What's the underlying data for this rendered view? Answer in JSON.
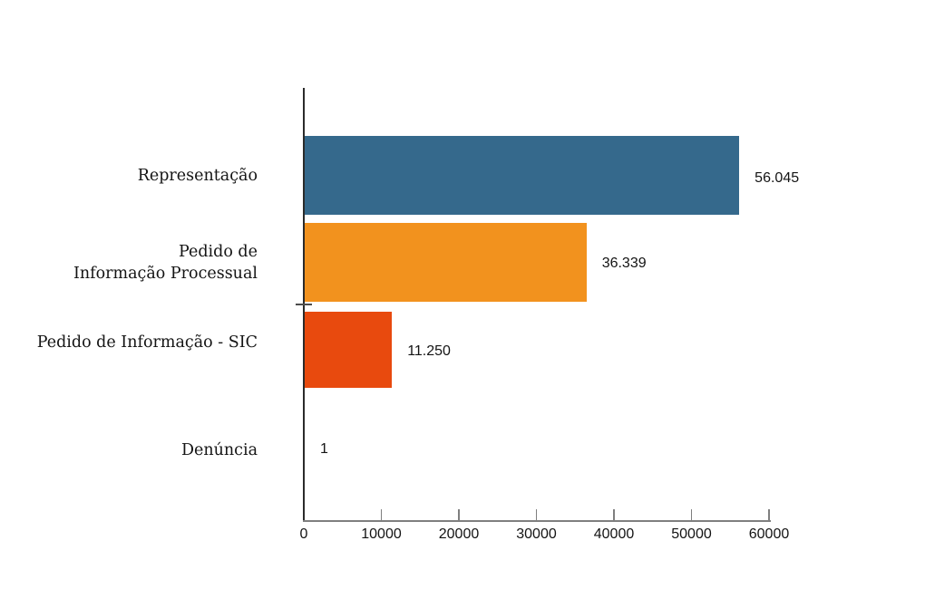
{
  "chart_data": {
    "type": "bar",
    "orientation": "horizontal",
    "title": "",
    "xlabel": "",
    "ylabel": "",
    "categories": [
      "Representação",
      "Pedido de\nInformação Processual",
      "Pedido de Informação - SIC",
      "Denúncia"
    ],
    "values": [
      56045,
      36339,
      11250,
      1
    ],
    "value_labels": [
      "56.045",
      "36.339",
      "11.250",
      "1"
    ],
    "bar_colors": [
      "#35698C",
      "#F2921E",
      "#E84A0E",
      "#35698C"
    ],
    "xlim": [
      0,
      60000
    ],
    "x_ticks": [
      0,
      10000,
      20000,
      30000,
      40000,
      50000,
      60000
    ],
    "x_tick_labels": [
      "0",
      "10000",
      "20000",
      "30000",
      "40000",
      "50000",
      "60000"
    ],
    "grid": false,
    "legend": "none"
  },
  "colors": {
    "y_axis": "#2B2B2B",
    "x_axis": "#7F7F7F",
    "tick": "#7F7F7F",
    "mid_tick": "#4D4D4D",
    "text": "#141414",
    "background": "#FFFFFF"
  }
}
